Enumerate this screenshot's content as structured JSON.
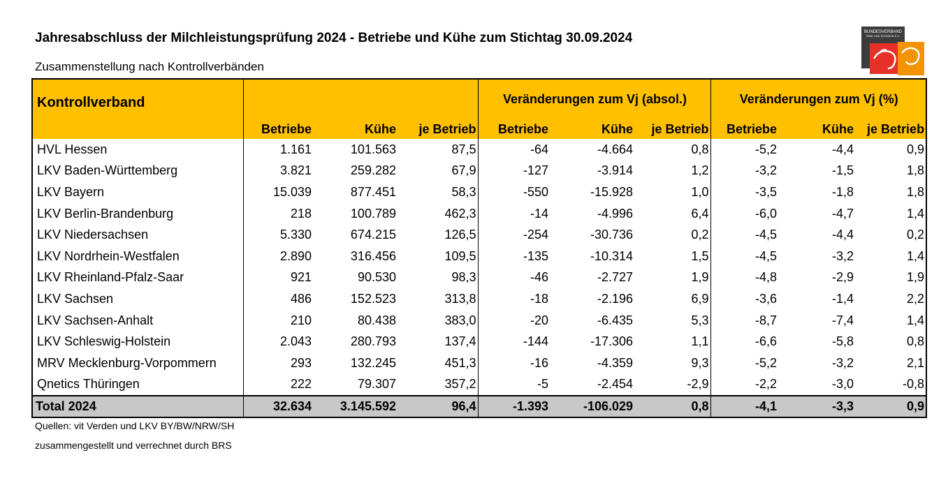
{
  "title": "Jahresabschluss der Milchleistungsprüfung 2024 - Betriebe und Kühe zum Stichtag 30.09.2024",
  "subtitle": "Zusammenstellung nach Kontrollverbänden",
  "logo": {
    "line1": "BUNDESVERBAND",
    "line2": "RIND UND SCHWEIN E.V.",
    "colors": {
      "red": "#e53127",
      "orange": "#f29400",
      "dark": "#3c3c3c"
    }
  },
  "colors": {
    "header_bg": "#ffc000",
    "total_bg": "#c8c8c8"
  },
  "header": {
    "kontrollverband": "Kontrollverband",
    "group_abs": "Veränderungen zum Vj (absol.)",
    "group_pct": "Veränderungen zum Vj (%)",
    "cols": [
      "Betriebe",
      "Kühe",
      "je Betrieb",
      "Betriebe",
      "Kühe",
      "je Betrieb",
      "Betriebe",
      "Kühe",
      "je Betrieb"
    ]
  },
  "rows": [
    {
      "name": "HVL Hessen",
      "values": [
        "1.161",
        "101.563",
        "87,5",
        "-64",
        "-4.664",
        "0,8",
        "-5,2",
        "-4,4",
        "0,9"
      ]
    },
    {
      "name": "LKV Baden-Württemberg",
      "values": [
        "3.821",
        "259.282",
        "67,9",
        "-127",
        "-3.914",
        "1,2",
        "-3,2",
        "-1,5",
        "1,8"
      ]
    },
    {
      "name": "LKV Bayern",
      "values": [
        "15.039",
        "877.451",
        "58,3",
        "-550",
        "-15.928",
        "1,0",
        "-3,5",
        "-1,8",
        "1,8"
      ]
    },
    {
      "name": "LKV Berlin-Brandenburg",
      "values": [
        "218",
        "100.789",
        "462,3",
        "-14",
        "-4.996",
        "6,4",
        "-6,0",
        "-4,7",
        "1,4"
      ]
    },
    {
      "name": "LKV Niedersachsen",
      "values": [
        "5.330",
        "674.215",
        "126,5",
        "-254",
        "-30.736",
        "0,2",
        "-4,5",
        "-4,4",
        "0,2"
      ]
    },
    {
      "name": "LKV Nordrhein-Westfalen",
      "values": [
        "2.890",
        "316.456",
        "109,5",
        "-135",
        "-10.314",
        "1,5",
        "-4,5",
        "-3,2",
        "1,4"
      ]
    },
    {
      "name": "LKV Rheinland-Pfalz-Saar",
      "values": [
        "921",
        "90.530",
        "98,3",
        "-46",
        "-2.727",
        "1,9",
        "-4,8",
        "-2,9",
        "1,9"
      ]
    },
    {
      "name": "LKV Sachsen",
      "values": [
        "486",
        "152.523",
        "313,8",
        "-18",
        "-2.196",
        "6,9",
        "-3,6",
        "-1,4",
        "2,2"
      ]
    },
    {
      "name": "LKV Sachsen-Anhalt",
      "values": [
        "210",
        "80.438",
        "383,0",
        "-20",
        "-6.435",
        "5,3",
        "-8,7",
        "-7,4",
        "1,4"
      ]
    },
    {
      "name": "LKV Schleswig-Holstein",
      "values": [
        "2.043",
        "280.793",
        "137,4",
        "-144",
        "-17.306",
        "1,1",
        "-6,6",
        "-5,8",
        "0,8"
      ]
    },
    {
      "name": "MRV Mecklenburg-Vorpommern",
      "values": [
        "293",
        "132.245",
        "451,3",
        "-16",
        "-4.359",
        "9,3",
        "-5,2",
        "-3,2",
        "2,1"
      ]
    },
    {
      "name": "Qnetics Thüringen",
      "values": [
        "222",
        "79.307",
        "357,2",
        "-5",
        "-2.454",
        "-2,9",
        "-2,2",
        "-3,0",
        "-0,8"
      ]
    }
  ],
  "total": {
    "name": "Total 2024",
    "values": [
      "32.634",
      "3.145.592",
      "96,4",
      "-1.393",
      "-106.029",
      "0,8",
      "-4,1",
      "-3,3",
      "0,9"
    ]
  },
  "notes": [
    "Quellen: vit Verden und LKV BY/BW/NRW/SH",
    "zusammengestellt und verrechnet durch BRS"
  ]
}
